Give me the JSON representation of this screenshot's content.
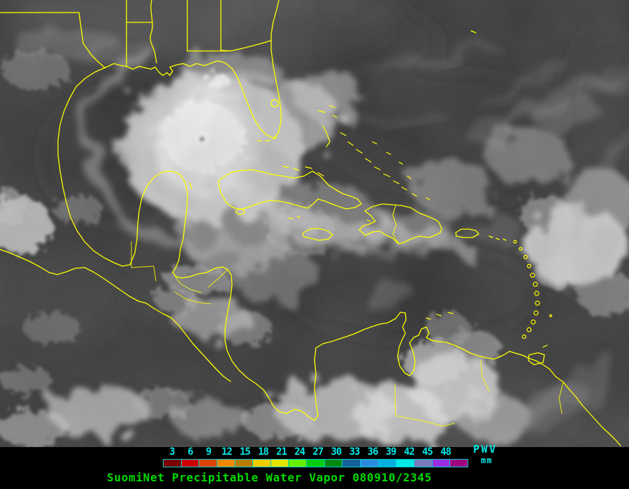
{
  "map": {
    "ocean_color": "#2f2f2f",
    "coastline_color": "#ffff00"
  },
  "legend": {
    "tick_values": [
      "3",
      "6",
      "9",
      "12",
      "15",
      "18",
      "21",
      "24",
      "27",
      "30",
      "33",
      "36",
      "39",
      "42",
      "45",
      "48"
    ],
    "tick_color": "#00e8e8",
    "bar_border_color": "#00cccc",
    "segment_colors": [
      "#780000",
      "#cc0000",
      "#dd4400",
      "#ee8800",
      "#b87c00",
      "#eecc00",
      "#e6e600",
      "#66ee00",
      "#00cc11",
      "#008811",
      "#156099",
      "#2a8ce0",
      "#00aee0",
      "#00e8e8",
      "#7b7abd",
      "#9a2ce0",
      "#a00580"
    ],
    "pwv_label": "PWV",
    "units_label": "mm",
    "label_color": "#00e8e8"
  },
  "caption": {
    "text": "SuomiNet Precipitable Water Vapor 080910/2345",
    "color": "#00dd00"
  }
}
